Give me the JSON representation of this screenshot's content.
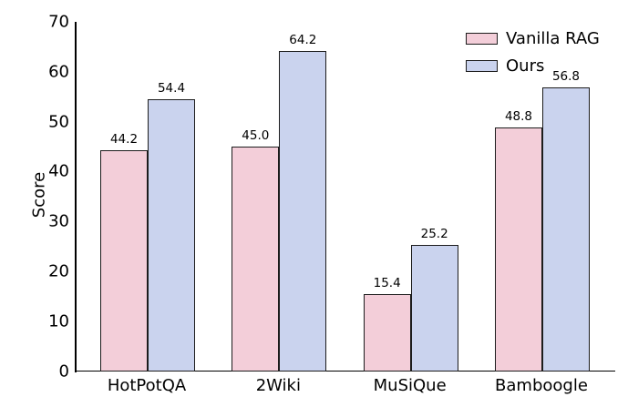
{
  "chart_data": {
    "type": "bar",
    "title": "",
    "categories": [
      "HotPotQA",
      "2Wiki",
      "MuSiQue",
      "Bamboogle"
    ],
    "series": [
      {
        "name": "Vanilla RAG",
        "color": "#f3ced9",
        "values": [
          44.2,
          45.0,
          15.4,
          48.8
        ]
      },
      {
        "name": "Ours",
        "color": "#cad3ee",
        "values": [
          54.4,
          64.2,
          25.2,
          56.8
        ]
      }
    ],
    "value_labels": [
      [
        "44.2",
        "45.0",
        "15.4",
        "48.8"
      ],
      [
        "54.4",
        "64.2",
        "25.2",
        "56.8"
      ]
    ],
    "xlabel": "",
    "ylabel": "Score",
    "ylim": [
      0,
      70
    ],
    "yticks": [
      0,
      10,
      20,
      30,
      40,
      50,
      60,
      70
    ],
    "bar_edge_color": "#1c1c1c",
    "grid": false,
    "legend_position": "upper right",
    "legend_frame": false
  }
}
